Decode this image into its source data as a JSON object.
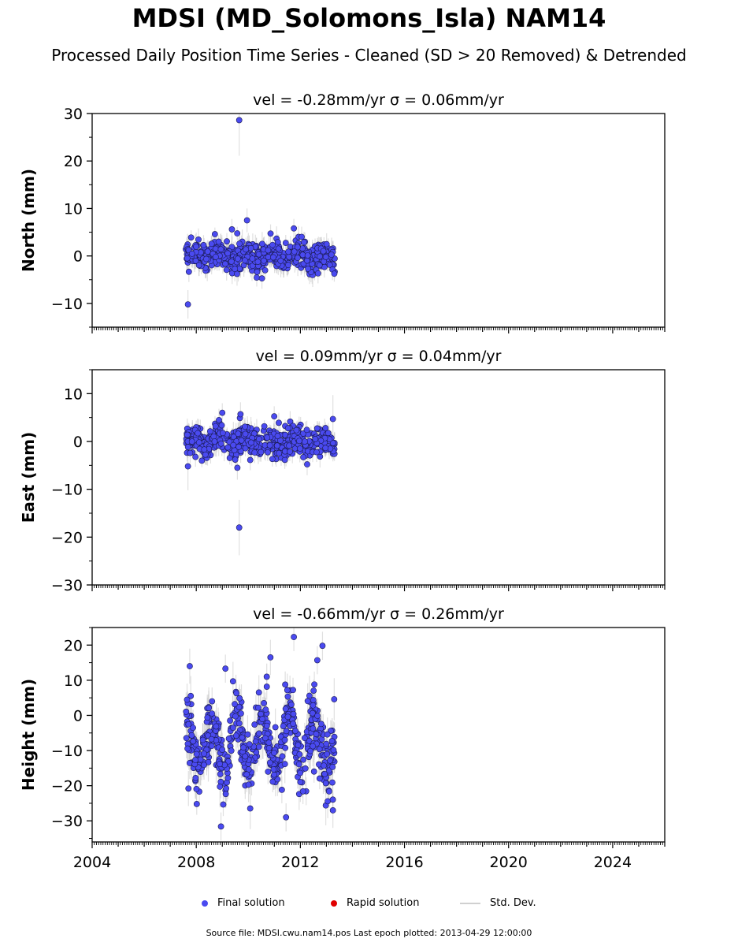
{
  "title": "MDSI (MD_Solomons_Isla) NAM14",
  "subtitle": "Processed Daily Position Time Series - Cleaned (SD > 20 Removed) & Detrended",
  "legend": {
    "final": "Final solution",
    "rapid": "Rapid solution",
    "std": "Std. Dev."
  },
  "footer": "Source file: MDSI.cwu.nam14.pos  Last epoch plotted: 2013-04-29 12:00:00",
  "colors": {
    "final": "#4a4af0",
    "rapid": "#e00000",
    "std": "#c8c8c8"
  },
  "chart_data": [
    {
      "type": "scatter",
      "component": "north",
      "title": "vel = -0.28mm/yr   σ = 0.06mm/yr",
      "ylabel": "North (mm)",
      "xlim": [
        2004,
        2026
      ],
      "ylim": [
        -15,
        30
      ],
      "yticks": [
        -10,
        0,
        10,
        20,
        30
      ],
      "xticks": [
        2004,
        2008,
        2012,
        2016,
        2020,
        2024
      ],
      "data_range": [
        2007.6,
        2013.32
      ],
      "noise_sd": 1.4,
      "err_sd": 2.2,
      "outliers": [
        {
          "x": 2007.68,
          "y": -10.2,
          "err": 3.0
        },
        {
          "x": 2009.65,
          "y": 28.6,
          "err": 7.5
        },
        {
          "x": 2009.95,
          "y": 7.5,
          "err": 2.5
        },
        {
          "x": 2009.37,
          "y": 5.6,
          "err": 2.2
        },
        {
          "x": 2011.75,
          "y": 5.8,
          "err": 2.0
        }
      ]
    },
    {
      "type": "scatter",
      "component": "east",
      "title": "vel = 0.09mm/yr   σ = 0.04mm/yr",
      "ylabel": "East (mm)",
      "xlim": [
        2004,
        2026
      ],
      "ylim": [
        -30,
        15
      ],
      "yticks": [
        -30,
        -20,
        -10,
        0,
        10
      ],
      "xticks": [
        2004,
        2008,
        2012,
        2016,
        2020,
        2024
      ],
      "data_range": [
        2007.6,
        2013.32
      ],
      "noise_sd": 1.5,
      "err_sd": 2.0,
      "outliers": [
        {
          "x": 2009.65,
          "y": -18.0,
          "err": 5.8
        },
        {
          "x": 2009.58,
          "y": -5.5,
          "err": 2.5
        },
        {
          "x": 2007.68,
          "y": -5.2,
          "err": 5.0
        },
        {
          "x": 2009.0,
          "y": 6.0,
          "err": 2.0
        },
        {
          "x": 2009.7,
          "y": 5.7,
          "err": 2.5
        },
        {
          "x": 2013.25,
          "y": 4.7,
          "err": 5.0
        }
      ]
    },
    {
      "type": "scatter",
      "component": "height",
      "title": "vel = -0.66mm/yr   σ = 0.26mm/yr",
      "ylabel": "Height (mm)",
      "xlim": [
        2004,
        2026
      ],
      "ylim": [
        -36,
        25
      ],
      "yticks": [
        -30,
        -20,
        -10,
        0,
        10,
        20
      ],
      "xticks": [
        2004,
        2008,
        2012,
        2016,
        2020,
        2024
      ],
      "data_range": [
        2007.6,
        2013.32
      ],
      "noise_sd": 7.0,
      "err_sd": 5.0,
      "outliers": [
        {
          "x": 2011.75,
          "y": 22.3,
          "err": 4.0
        },
        {
          "x": 2012.85,
          "y": 19.8,
          "err": 4.0
        },
        {
          "x": 2010.85,
          "y": 16.5,
          "err": 5.0
        },
        {
          "x": 2012.65,
          "y": 15.7,
          "err": 4.0
        },
        {
          "x": 2007.75,
          "y": 14.0,
          "err": 5.0
        },
        {
          "x": 2009.12,
          "y": 13.3,
          "err": 4.0
        },
        {
          "x": 2008.95,
          "y": -31.6,
          "err": 4.0
        },
        {
          "x": 2011.45,
          "y": -29.0,
          "err": 4.0
        },
        {
          "x": 2013.25,
          "y": -27.0,
          "err": 5.0
        },
        {
          "x": 2007.7,
          "y": -20.8,
          "err": 5.0
        },
        {
          "x": 2013.3,
          "y": 4.6,
          "err": 6.0
        }
      ]
    }
  ]
}
